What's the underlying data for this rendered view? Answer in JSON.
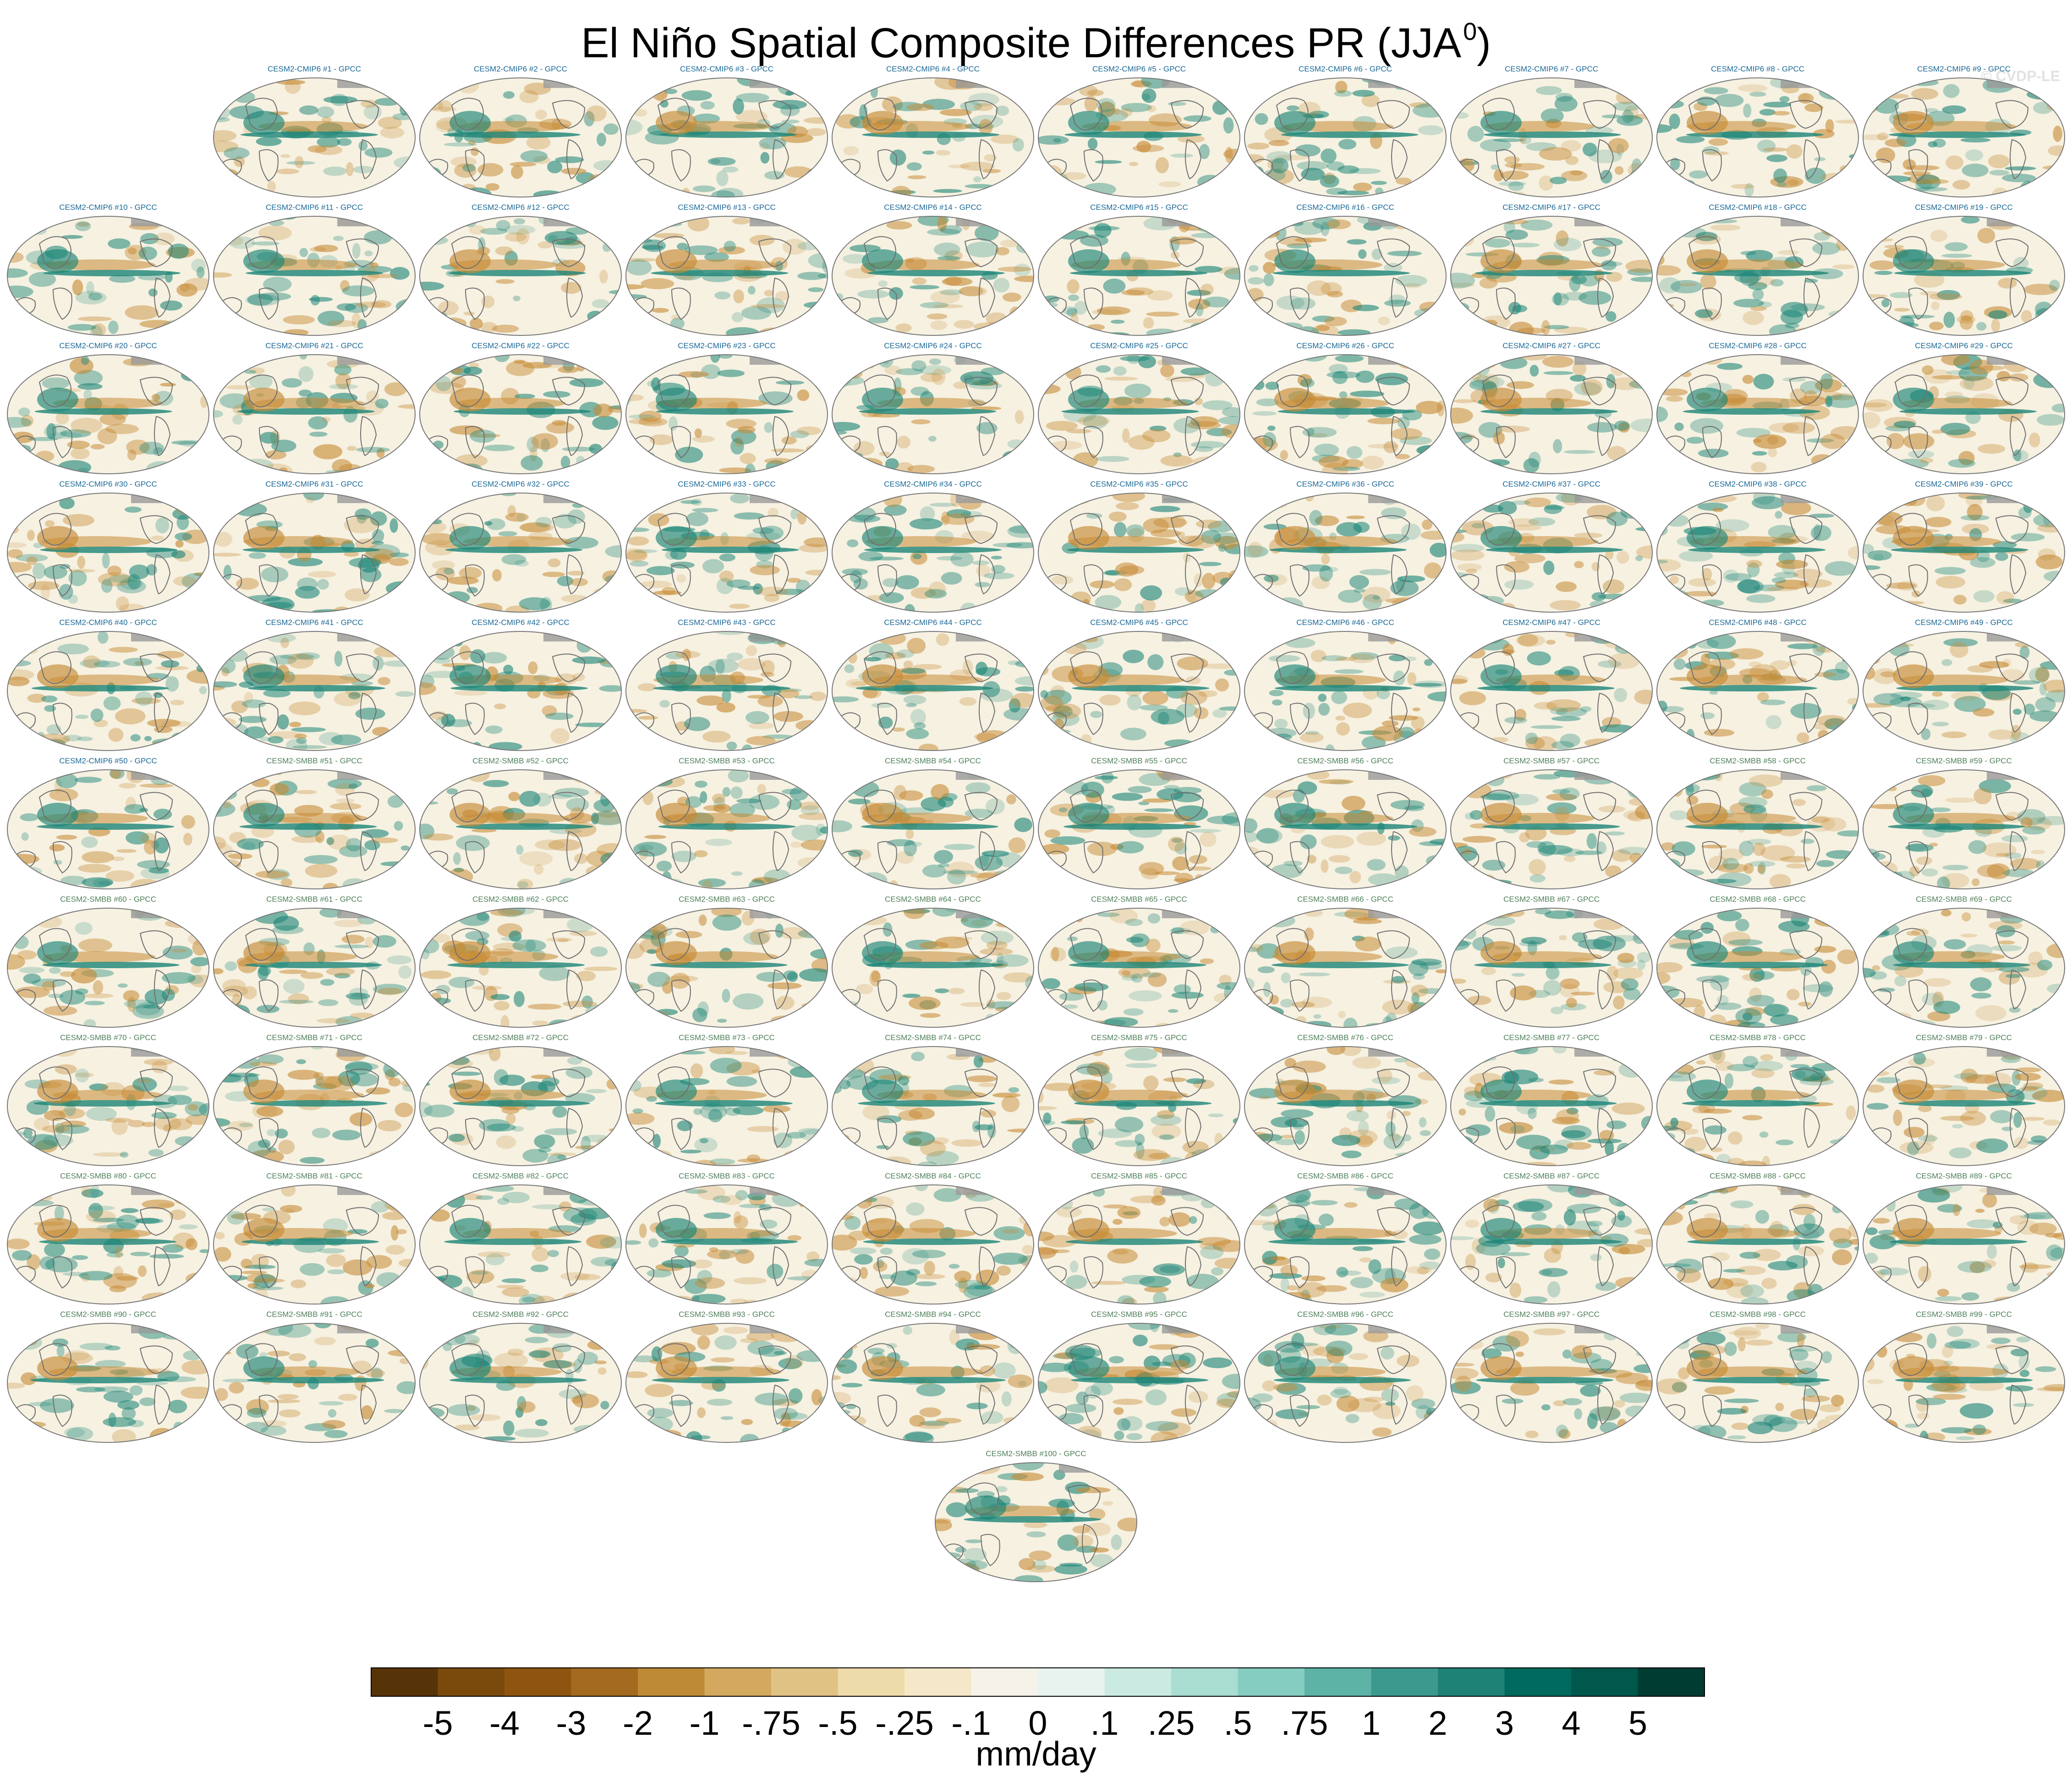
{
  "title": {
    "text": "El Niño Spatial Composite Differences PR (JJA",
    "sup": "0",
    "close": ")"
  },
  "watermark": "© CVDP-LE",
  "chart_data": {
    "type": "heatmap",
    "title": "El Niño Spatial Composite Differences PR (JJA0)",
    "units": "mm/day",
    "panel_prefix_cmip6": "CESM2-CMIP6",
    "panel_prefix_smbb": "CESM2-SMBB",
    "panel_suffix": "GPCC",
    "panels": [
      {
        "label": "CESM2-CMIP6 #1 - GPCC",
        "member": 1
      },
      {
        "label": "CESM2-CMIP6 #2 - GPCC",
        "member": 2
      },
      {
        "label": "CESM2-CMIP6 #3 - GPCC",
        "member": 3
      },
      {
        "label": "CESM2-CMIP6 #4 - GPCC",
        "member": 4
      },
      {
        "label": "CESM2-CMIP6 #5 - GPCC",
        "member": 5
      },
      {
        "label": "CESM2-CMIP6 #6 - GPCC",
        "member": 6
      },
      {
        "label": "CESM2-CMIP6 #7 - GPCC",
        "member": 7
      },
      {
        "label": "CESM2-CMIP6 #8 - GPCC",
        "member": 8
      },
      {
        "label": "CESM2-CMIP6 #9 - GPCC",
        "member": 9
      },
      {
        "label": "CESM2-CMIP6 #10 - GPCC",
        "member": 10
      },
      {
        "label": "CESM2-CMIP6 #11 - GPCC",
        "member": 11
      },
      {
        "label": "CESM2-CMIP6 #12 - GPCC",
        "member": 12
      },
      {
        "label": "CESM2-CMIP6 #13 - GPCC",
        "member": 13
      },
      {
        "label": "CESM2-CMIP6 #14 - GPCC",
        "member": 14
      },
      {
        "label": "CESM2-CMIP6 #15 - GPCC",
        "member": 15
      },
      {
        "label": "CESM2-CMIP6 #16 - GPCC",
        "member": 16
      },
      {
        "label": "CESM2-CMIP6 #17 - GPCC",
        "member": 17
      },
      {
        "label": "CESM2-CMIP6 #18 - GPCC",
        "member": 18
      },
      {
        "label": "CESM2-CMIP6 #19 - GPCC",
        "member": 19
      },
      {
        "label": "CESM2-CMIP6 #20 - GPCC",
        "member": 20
      },
      {
        "label": "CESM2-CMIP6 #21 - GPCC",
        "member": 21
      },
      {
        "label": "CESM2-CMIP6 #22 - GPCC",
        "member": 22
      },
      {
        "label": "CESM2-CMIP6 #23 - GPCC",
        "member": 23
      },
      {
        "label": "CESM2-CMIP6 #24 - GPCC",
        "member": 24
      },
      {
        "label": "CESM2-CMIP6 #25 - GPCC",
        "member": 25
      },
      {
        "label": "CESM2-CMIP6 #26 - GPCC",
        "member": 26
      },
      {
        "label": "CESM2-CMIP6 #27 - GPCC",
        "member": 27
      },
      {
        "label": "CESM2-CMIP6 #28 - GPCC",
        "member": 28
      },
      {
        "label": "CESM2-CMIP6 #29 - GPCC",
        "member": 29
      },
      {
        "label": "CESM2-CMIP6 #30 - GPCC",
        "member": 30
      },
      {
        "label": "CESM2-CMIP6 #31 - GPCC",
        "member": 31
      },
      {
        "label": "CESM2-CMIP6 #32 - GPCC",
        "member": 32
      },
      {
        "label": "CESM2-CMIP6 #33 - GPCC",
        "member": 33
      },
      {
        "label": "CESM2-CMIP6 #34 - GPCC",
        "member": 34
      },
      {
        "label": "CESM2-CMIP6 #35 - GPCC",
        "member": 35
      },
      {
        "label": "CESM2-CMIP6 #36 - GPCC",
        "member": 36
      },
      {
        "label": "CESM2-CMIP6 #37 - GPCC",
        "member": 37
      },
      {
        "label": "CESM2-CMIP6 #38 - GPCC",
        "member": 38
      },
      {
        "label": "CESM2-CMIP6 #39 - GPCC",
        "member": 39
      },
      {
        "label": "CESM2-CMIP6 #40 - GPCC",
        "member": 40
      },
      {
        "label": "CESM2-CMIP6 #41 - GPCC",
        "member": 41
      },
      {
        "label": "CESM2-CMIP6 #42 - GPCC",
        "member": 42
      },
      {
        "label": "CESM2-CMIP6 #43 - GPCC",
        "member": 43
      },
      {
        "label": "CESM2-CMIP6 #44 - GPCC",
        "member": 44
      },
      {
        "label": "CESM2-CMIP6 #45 - GPCC",
        "member": 45
      },
      {
        "label": "CESM2-CMIP6 #46 - GPCC",
        "member": 46
      },
      {
        "label": "CESM2-CMIP6 #47 - GPCC",
        "member": 47
      },
      {
        "label": "CESM2-CMIP6 #48 - GPCC",
        "member": 48
      },
      {
        "label": "CESM2-CMIP6 #49 - GPCC",
        "member": 49
      },
      {
        "label": "CESM2-CMIP6 #50 - GPCC",
        "member": 50
      },
      {
        "label": "CESM2-SMBB #51 - GPCC",
        "member": 51
      },
      {
        "label": "CESM2-SMBB #52 - GPCC",
        "member": 52
      },
      {
        "label": "CESM2-SMBB #53 - GPCC",
        "member": 53
      },
      {
        "label": "CESM2-SMBB #54 - GPCC",
        "member": 54
      },
      {
        "label": "CESM2-SMBB #55 - GPCC",
        "member": 55
      },
      {
        "label": "CESM2-SMBB #56 - GPCC",
        "member": 56
      },
      {
        "label": "CESM2-SMBB #57 - GPCC",
        "member": 57
      },
      {
        "label": "CESM2-SMBB #58 - GPCC",
        "member": 58
      },
      {
        "label": "CESM2-SMBB #59 - GPCC",
        "member": 59
      },
      {
        "label": "CESM2-SMBB #60 - GPCC",
        "member": 60
      },
      {
        "label": "CESM2-SMBB #61 - GPCC",
        "member": 61
      },
      {
        "label": "CESM2-SMBB #62 - GPCC",
        "member": 62
      },
      {
        "label": "CESM2-SMBB #63 - GPCC",
        "member": 63
      },
      {
        "label": "CESM2-SMBB #64 - GPCC",
        "member": 64
      },
      {
        "label": "CESM2-SMBB #65 - GPCC",
        "member": 65
      },
      {
        "label": "CESM2-SMBB #66 - GPCC",
        "member": 66
      },
      {
        "label": "CESM2-SMBB #67 - GPCC",
        "member": 67
      },
      {
        "label": "CESM2-SMBB #68 - GPCC",
        "member": 68
      },
      {
        "label": "CESM2-SMBB #69 - GPCC",
        "member": 69
      },
      {
        "label": "CESM2-SMBB #70 - GPCC",
        "member": 70
      },
      {
        "label": "CESM2-SMBB #71 - GPCC",
        "member": 71
      },
      {
        "label": "CESM2-SMBB #72 - GPCC",
        "member": 72
      },
      {
        "label": "CESM2-SMBB #73 - GPCC",
        "member": 73
      },
      {
        "label": "CESM2-SMBB #74 - GPCC",
        "member": 74
      },
      {
        "label": "CESM2-SMBB #75 - GPCC",
        "member": 75
      },
      {
        "label": "CESM2-SMBB #76 - GPCC",
        "member": 76
      },
      {
        "label": "CESM2-SMBB #77 - GPCC",
        "member": 77
      },
      {
        "label": "CESM2-SMBB #78 - GPCC",
        "member": 78
      },
      {
        "label": "CESM2-SMBB #79 - GPCC",
        "member": 79
      },
      {
        "label": "CESM2-SMBB #80 - GPCC",
        "member": 80
      },
      {
        "label": "CESM2-SMBB #81 - GPCC",
        "member": 81
      },
      {
        "label": "CESM2-SMBB #82 - GPCC",
        "member": 82
      },
      {
        "label": "CESM2-SMBB #83 - GPCC",
        "member": 83
      },
      {
        "label": "CESM2-SMBB #84 - GPCC",
        "member": 84
      },
      {
        "label": "CESM2-SMBB #85 - GPCC",
        "member": 85
      },
      {
        "label": "CESM2-SMBB #86 - GPCC",
        "member": 86
      },
      {
        "label": "CESM2-SMBB #87 - GPCC",
        "member": 87
      },
      {
        "label": "CESM2-SMBB #88 - GPCC",
        "member": 88
      },
      {
        "label": "CESM2-SMBB #89 - GPCC",
        "member": 89
      },
      {
        "label": "CESM2-SMBB #90 - GPCC",
        "member": 90
      },
      {
        "label": "CESM2-SMBB #91 - GPCC",
        "member": 91
      },
      {
        "label": "CESM2-SMBB #92 - GPCC",
        "member": 92
      },
      {
        "label": "CESM2-SMBB #93 - GPCC",
        "member": 93
      },
      {
        "label": "CESM2-SMBB #94 - GPCC",
        "member": 94
      },
      {
        "label": "CESM2-SMBB #95 - GPCC",
        "member": 95
      },
      {
        "label": "CESM2-SMBB #96 - GPCC",
        "member": 96
      },
      {
        "label": "CESM2-SMBB #97 - GPCC",
        "member": 97
      },
      {
        "label": "CESM2-SMBB #98 - GPCC",
        "member": 98
      },
      {
        "label": "CESM2-SMBB #99 - GPCC",
        "member": 99
      },
      {
        "label": "CESM2-SMBB #100 - GPCC",
        "member": 100
      }
    ],
    "colorbar": {
      "units": "mm/day",
      "ticks": [
        "-5",
        "-4",
        "-3",
        "-2",
        "-1",
        "-.75",
        "-.5",
        "-.25",
        "-.1",
        "0",
        ".1",
        ".25",
        ".5",
        ".75",
        "1",
        "2",
        "3",
        "4",
        "5"
      ],
      "colors": [
        "#573408",
        "#7a4a0c",
        "#8f5510",
        "#a46a1f",
        "#bf8a35",
        "#d3a95f",
        "#e1c285",
        "#eedbaa",
        "#f4e8c8",
        "#f5f2ea",
        "#e8f2ef",
        "#cbeae2",
        "#a9ddd2",
        "#85cdc0",
        "#5db3a5",
        "#3b9a8d",
        "#1e8276",
        "#006a5e",
        "#00574c",
        "#003c32"
      ]
    },
    "label_colors": {
      "cmip6": "#1a6896",
      "smbb": "#4f7f58"
    },
    "map_colors": {
      "dry": "#c68a34",
      "wet": "#1b8577",
      "base": "#f6f1e1",
      "land": "#9a9a9a"
    }
  }
}
